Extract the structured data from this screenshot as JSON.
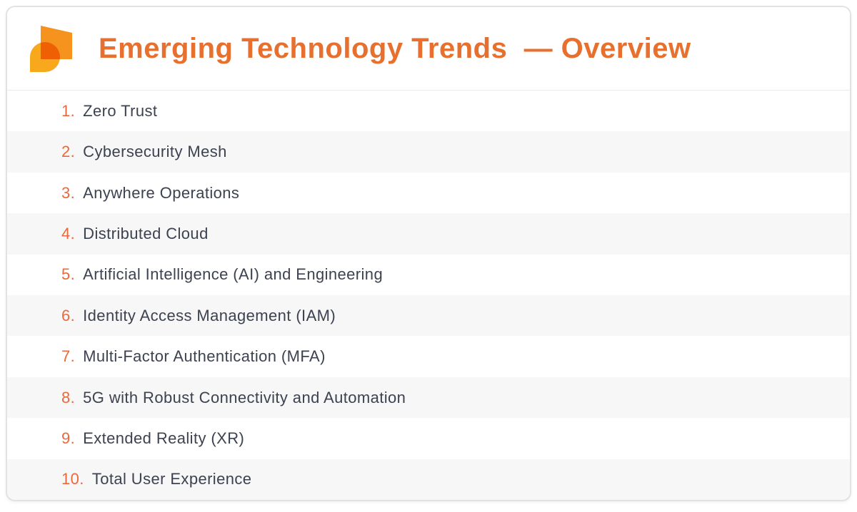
{
  "colors": {
    "accent_orange": "#E8702E",
    "number_orange": "#EB683A",
    "body_text": "#3C4250",
    "alt_row": "#F7F7F8",
    "card_border": "#E2E2E4",
    "header_divider": "#EBEBEB",
    "logo_square": "#F6921E",
    "logo_drop": "#F8A81C",
    "logo_overlap": "#EE6003"
  },
  "header": {
    "title": "Emerging Technology Trends  — Overview"
  },
  "list": {
    "items": [
      {
        "number": "1.",
        "label": "Zero Trust"
      },
      {
        "number": "2.",
        "label": "Cybersecurity Mesh"
      },
      {
        "number": "3.",
        "label": "Anywhere Operations"
      },
      {
        "number": "4.",
        "label": "Distributed Cloud"
      },
      {
        "number": "5.",
        "label": "Artificial Intelligence (AI) and Engineering"
      },
      {
        "number": "6.",
        "label": "Identity Access Management (IAM)"
      },
      {
        "number": "7.",
        "label": "Multi-Factor Authentication (MFA)"
      },
      {
        "number": "8.",
        "label": "5G with Robust Connectivity and Automation"
      },
      {
        "number": "9.",
        "label": "Extended Reality (XR)"
      },
      {
        "number": "10.",
        "label": "Total User Experience"
      }
    ]
  }
}
